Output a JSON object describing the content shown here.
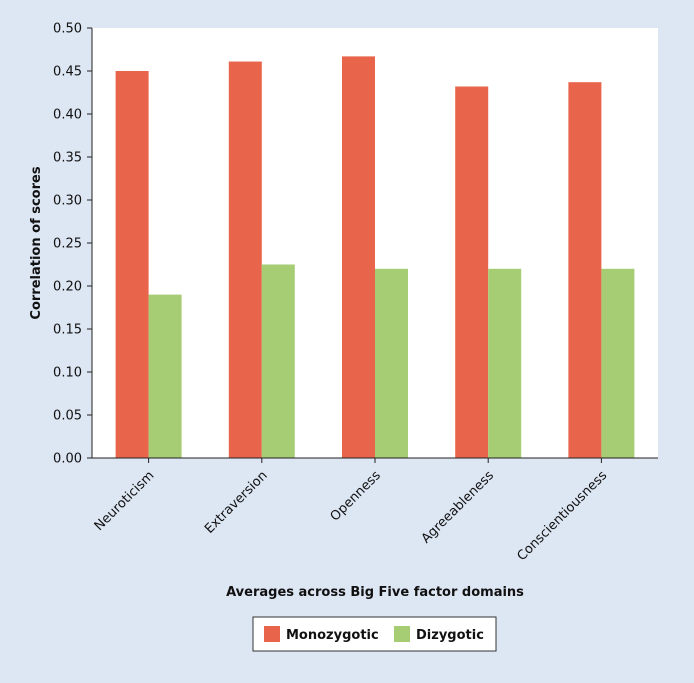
{
  "chart_data": {
    "type": "bar",
    "categories": [
      "Neuroticism",
      "Extraversion",
      "Openness",
      "Agreeableness",
      "Conscientiousness"
    ],
    "series": [
      {
        "name": "Monozygotic",
        "values": [
          0.45,
          0.461,
          0.467,
          0.432,
          0.437
        ],
        "color": "#e8654b"
      },
      {
        "name": "Dizygotic",
        "values": [
          0.19,
          0.225,
          0.22,
          0.22,
          0.22
        ],
        "color": "#a6cc74"
      }
    ],
    "xlabel": "Averages across Big Five factor domains",
    "ylabel": "Correlation of scores",
    "ylim": [
      0,
      0.5
    ],
    "yticks": [
      "0.00",
      "0.05",
      "0.10",
      "0.15",
      "0.20",
      "0.25",
      "0.30",
      "0.35",
      "0.40",
      "0.45",
      "0.50"
    ],
    "grid": false,
    "legend_position": "bottom-center"
  },
  "legend": {
    "items": [
      {
        "label": "Monozygotic",
        "color": "#e8654b"
      },
      {
        "label": "Dizygotic",
        "color": "#a6cc74"
      }
    ]
  }
}
